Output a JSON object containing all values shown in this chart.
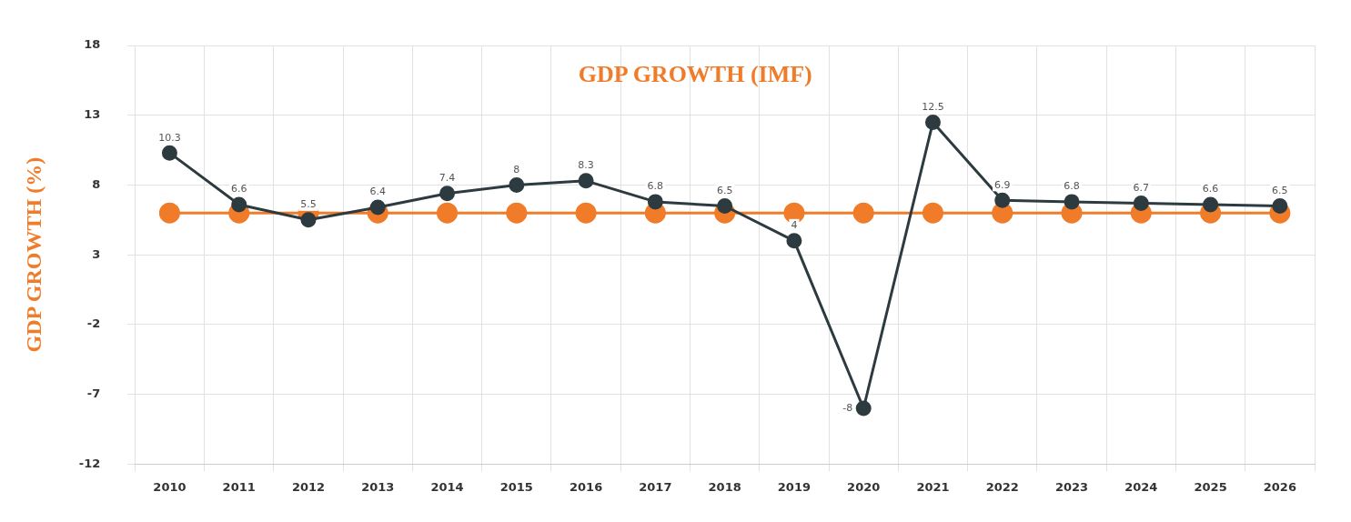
{
  "chart_data": {
    "type": "line",
    "title": "GDP GROWTH (IMF)",
    "ylabel": "GDP GROWTH (%)",
    "categories": [
      "2010",
      "2011",
      "2012",
      "2013",
      "2014",
      "2015",
      "2016",
      "2017",
      "2018",
      "2019",
      "2020",
      "2021",
      "2022",
      "2023",
      "2024",
      "2025",
      "2026"
    ],
    "series": [
      {
        "color": "#2d3a3f",
        "values": [
          10.3,
          6.6,
          5.5,
          6.4,
          7.4,
          8,
          8.3,
          6.8,
          6.5,
          4,
          -8,
          12.5,
          6.9,
          6.8,
          6.7,
          6.6,
          6.5
        ],
        "value_labels": [
          "10.3",
          "6.6",
          "5.5",
          "6.4",
          "7.4",
          "8",
          "8.3",
          "6.8",
          "6.5",
          "4",
          "-8",
          "12.5",
          "6.9",
          "6.8",
          "6.7",
          "6.6",
          "6.5"
        ]
      },
      {
        "color": "#f07c2a",
        "values": [
          6,
          6,
          6,
          6,
          6,
          6,
          6,
          6,
          6,
          6,
          6,
          6,
          6,
          6,
          6,
          6,
          6
        ]
      }
    ],
    "ylim": [
      -12,
      18
    ],
    "yticks": [
      -12,
      -7,
      -2,
      3,
      8,
      13,
      18
    ],
    "grid": true,
    "legend": false,
    "marker": "circle",
    "line_style": "solid"
  }
}
